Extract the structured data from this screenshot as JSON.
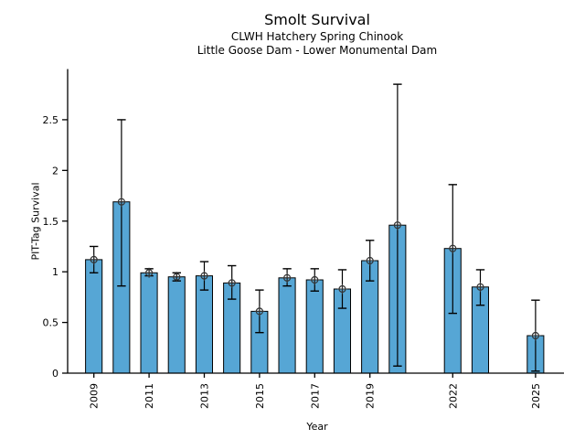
{
  "chart_data": {
    "type": "bar",
    "title": "Smolt Survival",
    "subtitle1": "CLWH Hatchery Spring Chinook",
    "subtitle2": "Little Goose Dam - Lower Monumental Dam",
    "xlabel": "Year",
    "ylabel": "PIT-Tag Survival",
    "ylim": [
      0,
      3.0
    ],
    "yticks": [
      0,
      0.5,
      1,
      1.5,
      2,
      2.5
    ],
    "xlim": [
      2008.05,
      2026.03
    ],
    "xticks": [
      2009,
      2011,
      2013,
      2015,
      2017,
      2019,
      2022,
      2025
    ],
    "x_tick_label_rotation": 90,
    "grid": false,
    "legend": null,
    "bar_width_years": 0.6,
    "colors": {
      "bar_fill": "#56A6D5",
      "bar_edge": "#000000",
      "error_bar": "#000000",
      "marker": "#333333",
      "axis": "#000000",
      "background": "#ffffff"
    },
    "series": [
      {
        "year": 2009,
        "value": 1.12,
        "ci_low": 0.99,
        "ci_high": 1.25
      },
      {
        "year": 2010,
        "value": 1.69,
        "ci_low": 0.86,
        "ci_high": 2.5
      },
      {
        "year": 2011,
        "value": 0.99,
        "ci_low": 0.96,
        "ci_high": 1.03
      },
      {
        "year": 2012,
        "value": 0.95,
        "ci_low": 0.91,
        "ci_high": 0.99
      },
      {
        "year": 2013,
        "value": 0.96,
        "ci_low": 0.82,
        "ci_high": 1.1
      },
      {
        "year": 2014,
        "value": 0.89,
        "ci_low": 0.73,
        "ci_high": 1.06
      },
      {
        "year": 2015,
        "value": 0.61,
        "ci_low": 0.4,
        "ci_high": 0.82
      },
      {
        "year": 2016,
        "value": 0.94,
        "ci_low": 0.86,
        "ci_high": 1.03
      },
      {
        "year": 2017,
        "value": 0.92,
        "ci_low": 0.81,
        "ci_high": 1.03
      },
      {
        "year": 2018,
        "value": 0.83,
        "ci_low": 0.64,
        "ci_high": 1.02
      },
      {
        "year": 2019,
        "value": 1.11,
        "ci_low": 0.91,
        "ci_high": 1.31
      },
      {
        "year": 2020,
        "value": 1.46,
        "ci_low": 0.07,
        "ci_high": 2.85
      },
      {
        "year": 2022,
        "value": 1.23,
        "ci_low": 0.59,
        "ci_high": 1.86
      },
      {
        "year": 2023,
        "value": 0.85,
        "ci_low": 0.67,
        "ci_high": 1.02
      },
      {
        "year": 2025,
        "value": 0.37,
        "ci_low": 0.02,
        "ci_high": 0.72
      }
    ]
  }
}
